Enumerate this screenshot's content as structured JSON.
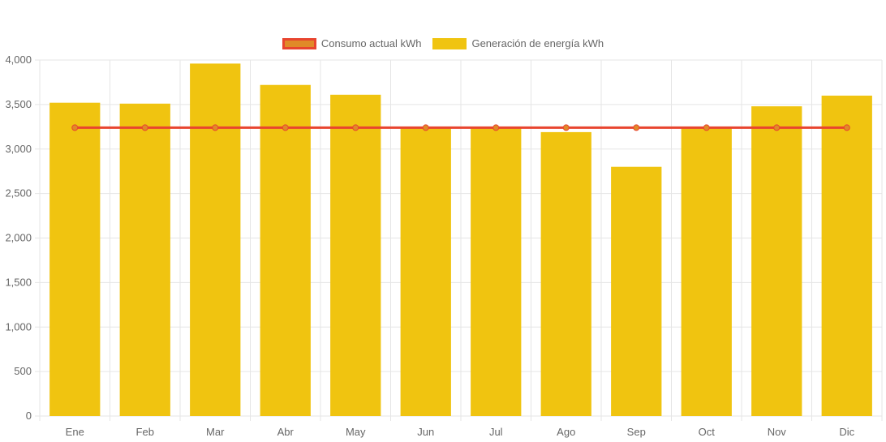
{
  "chart_data": {
    "type": "bar",
    "categories": [
      "Ene",
      "Feb",
      "Mar",
      "Abr",
      "May",
      "Jun",
      "Jul",
      "Ago",
      "Sep",
      "Oct",
      "Nov",
      "Dic"
    ],
    "series": [
      {
        "name": "Generación de energía kWh",
        "type": "bar",
        "color": "#f0c410",
        "values": [
          3520,
          3510,
          3960,
          3720,
          3610,
          3240,
          3240,
          3190,
          2800,
          3240,
          3480,
          3600
        ]
      },
      {
        "name": "Consumo actual kWh",
        "type": "line",
        "color": "#e8452f",
        "point_fill": "#e08a28",
        "values": [
          3240,
          3240,
          3240,
          3240,
          3240,
          3240,
          3240,
          3240,
          3240,
          3240,
          3240,
          3240
        ]
      }
    ],
    "ylim": [
      0,
      4000
    ],
    "yticks": [
      0,
      500,
      1000,
      1500,
      2000,
      2500,
      3000,
      3500,
      4000
    ],
    "ytick_labels": [
      "0",
      "500",
      "1,000",
      "1,500",
      "2,000",
      "2,500",
      "3,000",
      "3,500",
      "4,000"
    ],
    "grid": true,
    "legend_position": "top-center",
    "title": "",
    "xlabel": "",
    "ylabel": ""
  }
}
